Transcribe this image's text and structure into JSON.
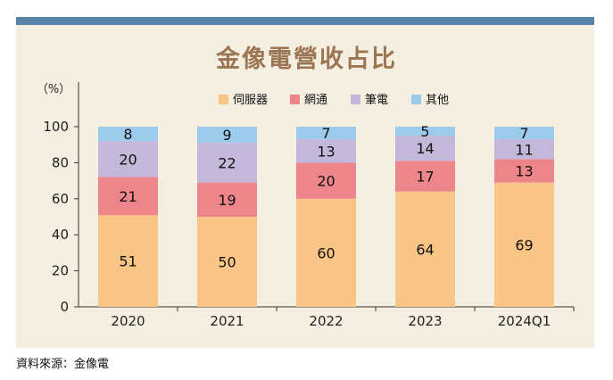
{
  "title": "金像電營收占比",
  "source": "資料來源：金像電",
  "colors": {
    "band": "#5b84aa",
    "panel": "#f4efe1",
    "title": "#9c7654",
    "server": "#f9c586",
    "network": "#ee858a",
    "notebook": "#c3b8d9",
    "other": "#9ccbec"
  },
  "chart_data": {
    "type": "bar",
    "stacked": true,
    "unit_label": "（%）",
    "categories": [
      "2020",
      "2021",
      "2022",
      "2023",
      "2024Q1"
    ],
    "series": [
      {
        "name": "伺服器",
        "values": [
          51,
          50,
          60,
          64,
          69
        ]
      },
      {
        "name": "網通",
        "values": [
          21,
          19,
          20,
          17,
          13
        ]
      },
      {
        "name": "筆電",
        "values": [
          20,
          22,
          13,
          14,
          11
        ]
      },
      {
        "name": "其他",
        "values": [
          8,
          9,
          7,
          5,
          7
        ]
      }
    ],
    "ylim": [
      0,
      100
    ],
    "yticks": [
      "0",
      "20",
      "40",
      "60",
      "80",
      "100"
    ],
    "legend_position": "top-center",
    "grid": false
  }
}
